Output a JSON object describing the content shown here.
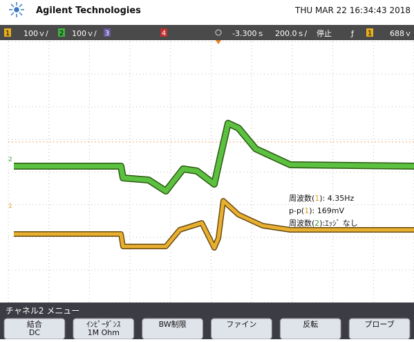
{
  "header": {
    "brand": "Agilent Technologies",
    "datetime": "THU MAR 22 16:34:43 2018"
  },
  "status": {
    "ch1": "1",
    "ch1_scale": "100ｖ/",
    "ch2": "2",
    "ch2_scale": "100ｖ/",
    "ch3": "3",
    "ch4": "4",
    "delay": "-3.300ｓ",
    "timebase": "200.0ｓ/",
    "run_state": "停止",
    "trigger_slope": "ƒ",
    "trigger_source": "1",
    "trigger_level": "688ｖ"
  },
  "markers": {
    "ch2": "2",
    "ch1": "1"
  },
  "measurements": [
    {
      "prefix": "周波数(",
      "channel": "1",
      "suffix": "): 4.35Hz"
    },
    {
      "prefix": "p-p(",
      "channel": "1",
      "suffix": "): 169mV"
    },
    {
      "prefix": "周波数(",
      "channel": "2",
      "suffix": "):ｴｯｼﾞ なし"
    }
  ],
  "menu": {
    "title": "チャネル2 メニュー",
    "softkeys": [
      [
        "結合",
        "DC"
      ],
      [
        "ｲﾝﾋﾟｰﾀﾞﾝｽ",
        "1M Ohm"
      ],
      [
        "BW制限",
        ""
      ],
      [
        "ファイン",
        ""
      ],
      [
        "反転",
        ""
      ],
      [
        "プローブ",
        ""
      ]
    ]
  }
}
